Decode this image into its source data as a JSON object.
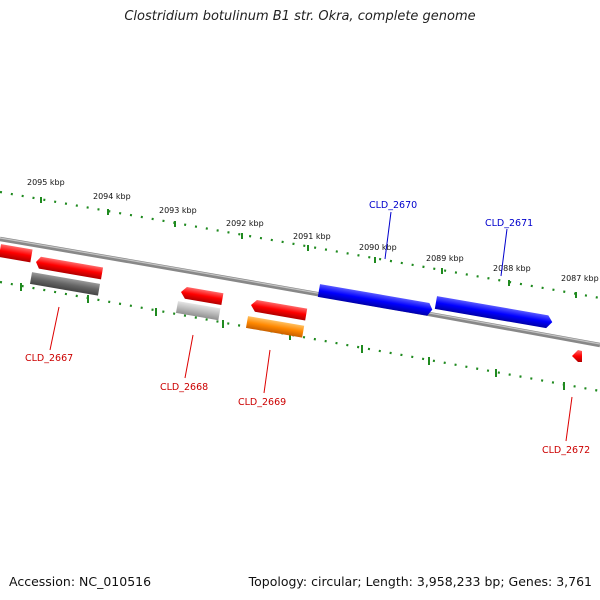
{
  "title": "Clostridium botulinum B1 str. Okra, complete genome",
  "footer": {
    "accession": "Accession: NC_010516",
    "stats": "Topology: circular; Length: 3,958,233 bp; Genes: 3,761"
  },
  "scale_labels": [
    "2095 kbp",
    "2094 kbp",
    "2093 kbp",
    "2092 kbp",
    "2091 kbp",
    "2090 kbp",
    "2089 kbp",
    "2088 kbp",
    "2087 kbp"
  ],
  "gene_labels": {
    "cld_2667": "CLD_2667",
    "cld_2668": "CLD_2668",
    "cld_2669": "CLD_2669",
    "cld_2670": "CLD_2670",
    "cld_2671": "CLD_2671",
    "cld_2672": "CLD_2672"
  },
  "colors": {
    "backbone": "#888888",
    "scale_ticks": "#1f8a1f",
    "forward_strand_label": "#0000cc",
    "reverse_strand_label": "#cc0000",
    "gene_red": "#ff0000",
    "gene_blue": "#0000ff",
    "gene_gray_dark": "#666666",
    "gene_gray_light": "#bbbbbb",
    "gene_orange": "#ff8800"
  }
}
